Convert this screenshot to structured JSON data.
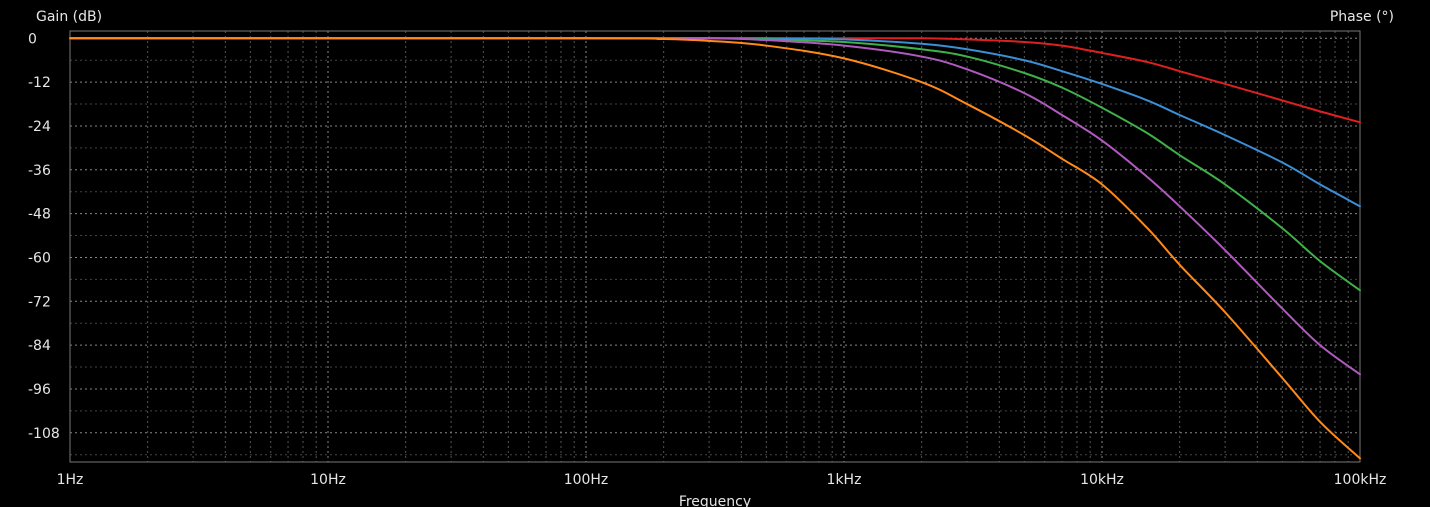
{
  "chart_data": {
    "type": "line",
    "ylabel": "Gain (dB)",
    "y2label": "Phase (°)",
    "xlabel": "Frequency",
    "x_scale": "log",
    "xlim": [
      1,
      100000
    ],
    "ylim": [
      -116,
      2
    ],
    "x_ticks": [
      {
        "value": 1,
        "label": "1Hz"
      },
      {
        "value": 10,
        "label": "10Hz"
      },
      {
        "value": 100,
        "label": "100Hz"
      },
      {
        "value": 1000,
        "label": "1kHz"
      },
      {
        "value": 10000,
        "label": "10kHz"
      },
      {
        "value": 100000,
        "label": "100kHz"
      }
    ],
    "y_ticks": [
      {
        "value": 0,
        "label": "0"
      },
      {
        "value": -12,
        "label": "-12"
      },
      {
        "value": -24,
        "label": "-24"
      },
      {
        "value": -36,
        "label": "-36"
      },
      {
        "value": -48,
        "label": "-48"
      },
      {
        "value": -60,
        "label": "-60"
      },
      {
        "value": -72,
        "label": "-72"
      },
      {
        "value": -84,
        "label": "-84"
      },
      {
        "value": -96,
        "label": "-96"
      },
      {
        "value": -108,
        "label": "-108"
      }
    ],
    "grid": true,
    "series": [
      {
        "color": "#e02020",
        "x": [
          1,
          100,
          1000,
          2000,
          3000,
          5000,
          7000,
          10000,
          15000,
          20000,
          30000,
          50000,
          70000,
          100000
        ],
        "y": [
          0,
          0,
          0,
          0,
          -0.3,
          -1,
          -2,
          -4,
          -6.5,
          -9,
          -12.5,
          -17,
          -20,
          -23
        ]
      },
      {
        "color": "#3a8fd6",
        "x": [
          1,
          100,
          500,
          1000,
          2000,
          3000,
          5000,
          7000,
          10000,
          15000,
          20000,
          30000,
          50000,
          70000,
          100000
        ],
        "y": [
          0,
          0,
          0,
          -0.3,
          -1.5,
          -3,
          -6,
          -9,
          -12.5,
          -17,
          -21,
          -26.5,
          -34,
          -40,
          -46
        ]
      },
      {
        "color": "#3fb04a",
        "x": [
          1,
          100,
          300,
          500,
          1000,
          2000,
          3000,
          5000,
          7000,
          10000,
          15000,
          20000,
          30000,
          50000,
          70000,
          100000
        ],
        "y": [
          0,
          0,
          0,
          -0.3,
          -1,
          -3,
          -5,
          -9.5,
          -13.5,
          -19,
          -26,
          -32,
          -40,
          -52,
          -61,
          -69
        ]
      },
      {
        "color": "#b05abf",
        "x": [
          1,
          100,
          300,
          500,
          1000,
          2000,
          3000,
          5000,
          7000,
          10000,
          15000,
          20000,
          30000,
          50000,
          70000,
          100000
        ],
        "y": [
          0,
          0,
          0,
          -0.5,
          -2,
          -5,
          -8.5,
          -15,
          -21,
          -28,
          -38,
          -46,
          -58,
          -74,
          -84,
          -92
        ]
      },
      {
        "color": "#ff8a1a",
        "x": [
          1,
          100,
          200,
          300,
          500,
          1000,
          2000,
          3000,
          5000,
          7000,
          10000,
          15000,
          20000,
          30000,
          50000,
          70000,
          100000
        ],
        "y": [
          0,
          0,
          -0.2,
          -0.7,
          -2,
          -5.5,
          -12,
          -18,
          -26.5,
          -33,
          -40,
          -52,
          -62,
          -75,
          -93,
          -105,
          -115
        ]
      }
    ]
  }
}
